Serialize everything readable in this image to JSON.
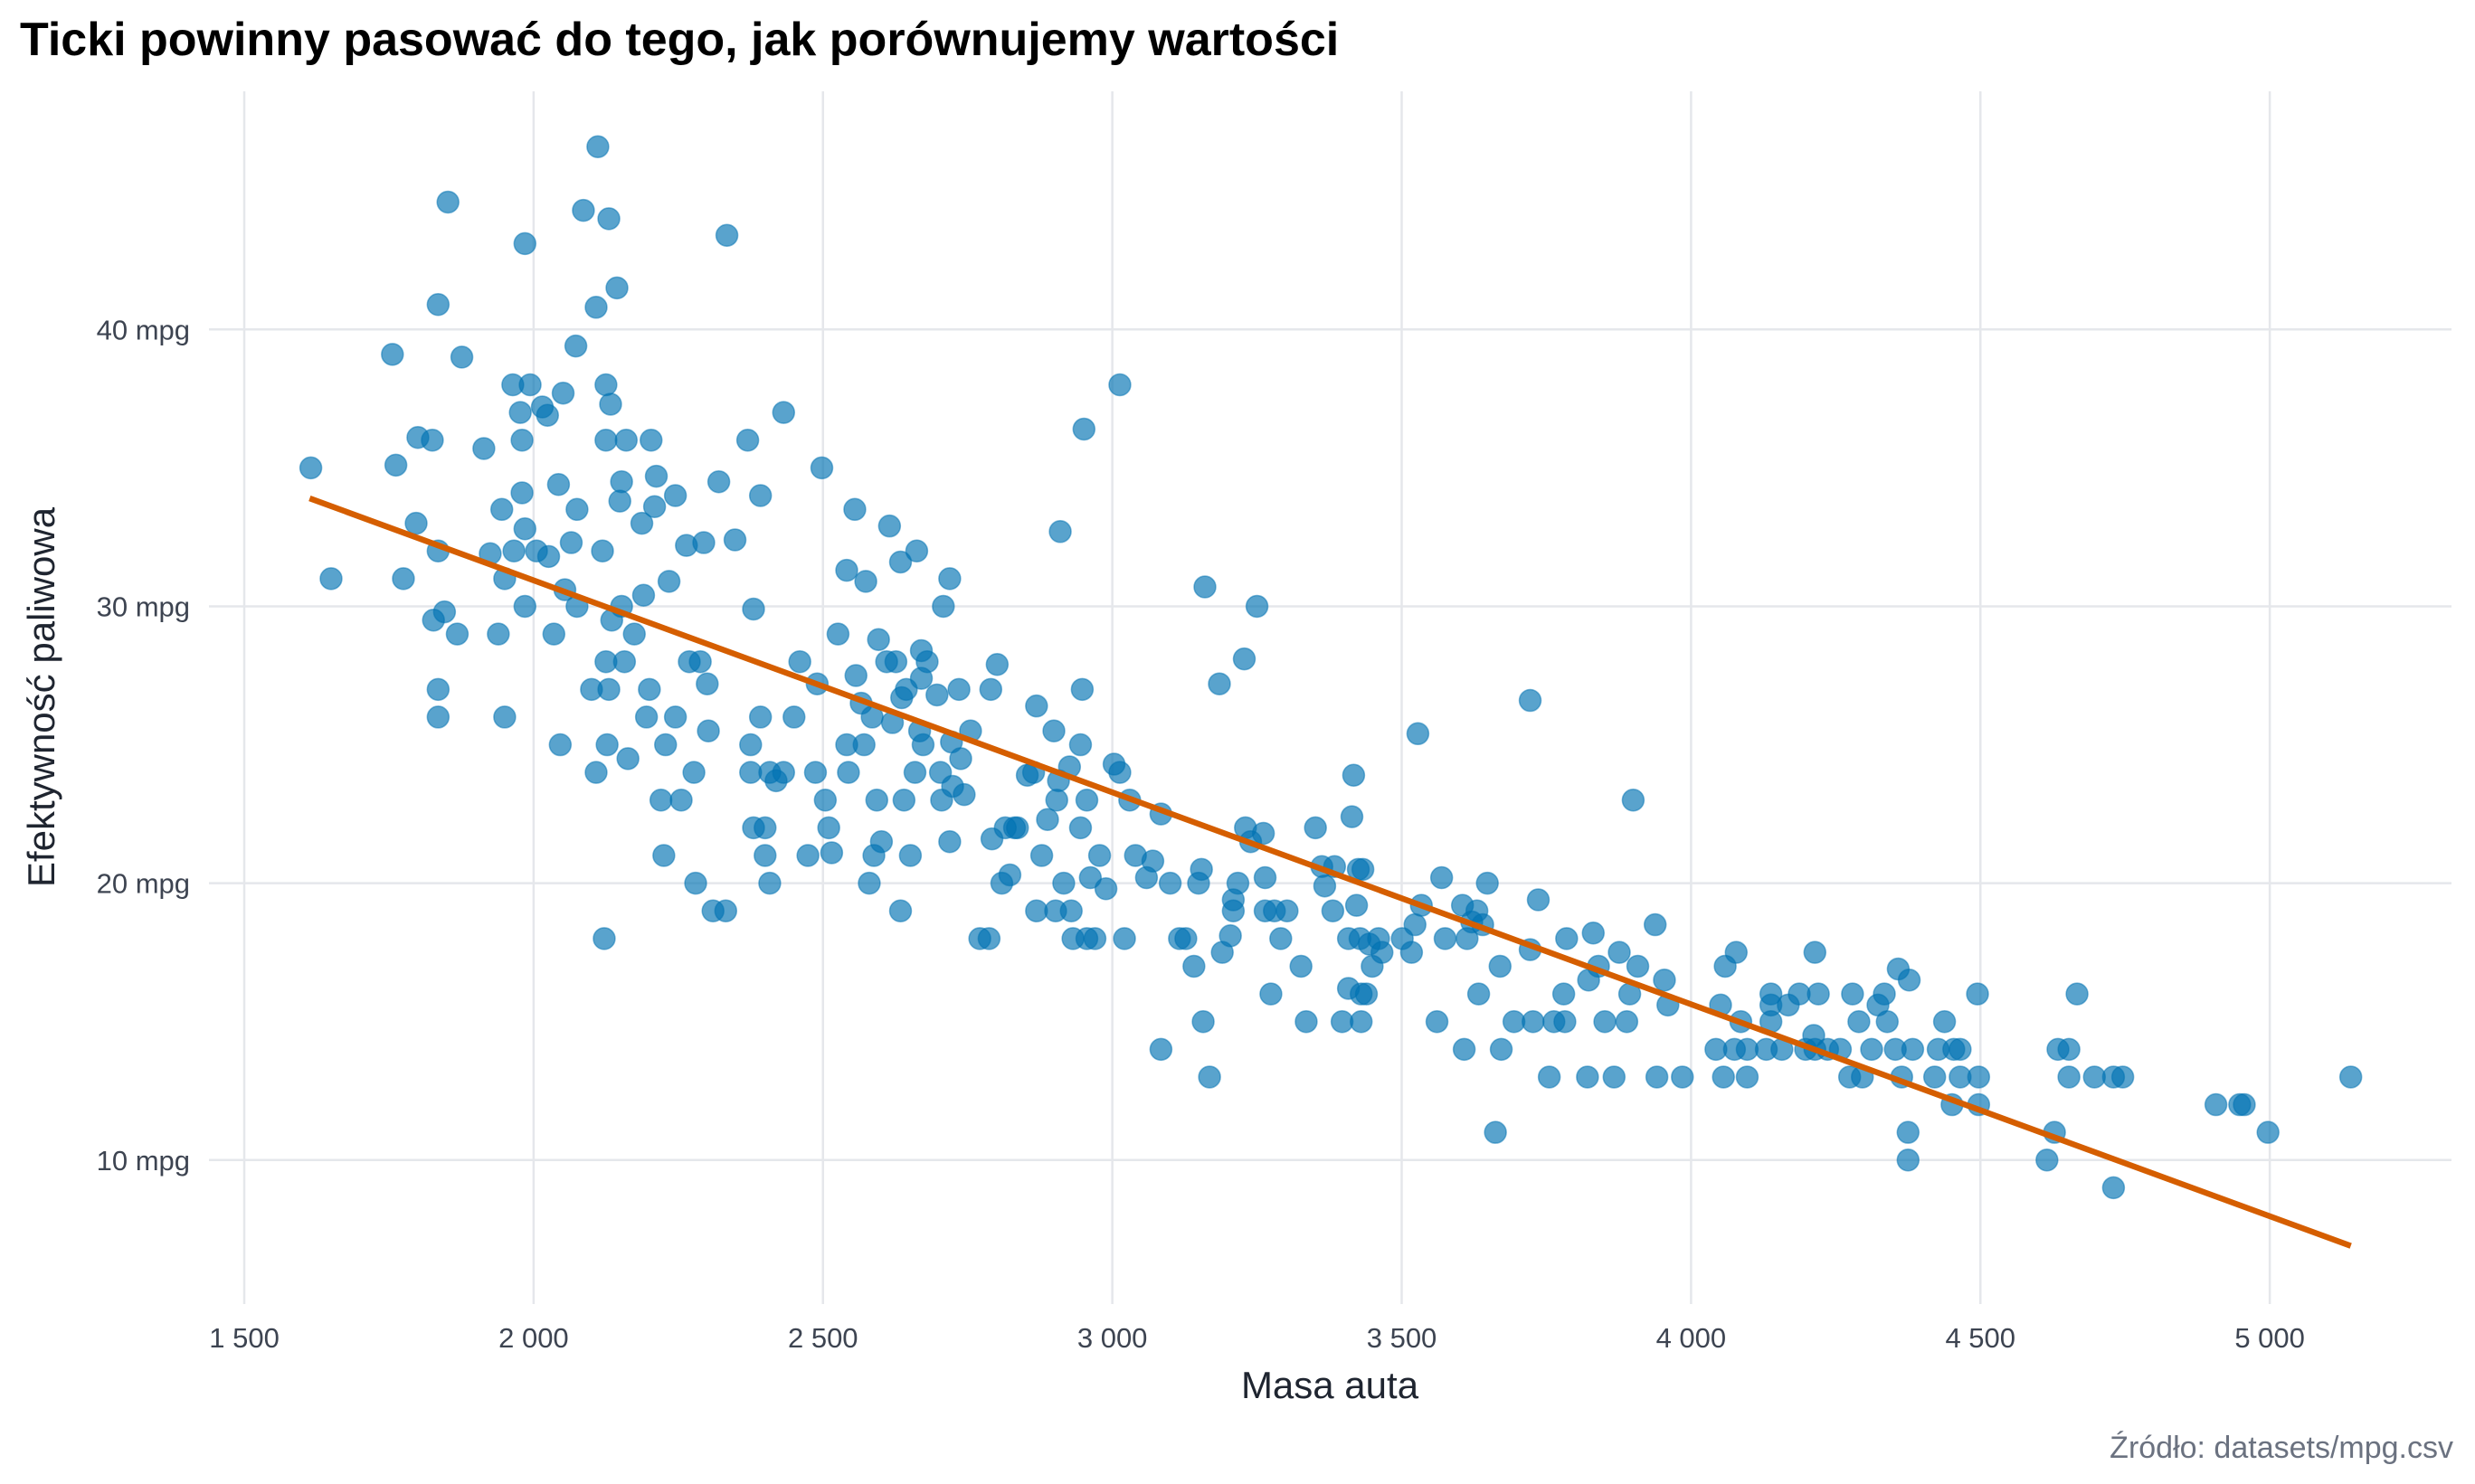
{
  "chart_data": {
    "type": "scatter",
    "title": "Ticki powinny pasować do tego, jak porównujemy wartości",
    "xlabel": "Masa auta",
    "ylabel": "Efektywność paliwowa",
    "caption": "Źródło: datasets/mpg.csv",
    "xlim": [
      1439,
      5314
    ],
    "ylim": [
      4.8,
      48.6
    ],
    "x_ticks": [
      1500,
      2000,
      2500,
      3000,
      3500,
      4000,
      4500,
      5000
    ],
    "x_tick_labels": [
      "1 500",
      "2 000",
      "2 500",
      "3 000",
      "3 500",
      "4 000",
      "4 500",
      "5 000"
    ],
    "y_ticks": [
      10,
      20,
      30,
      40
    ],
    "y_tick_labels": [
      "10 mpg",
      "20 mpg",
      "30 mpg",
      "40 mpg"
    ],
    "grid": true,
    "point_color": "#0072B2",
    "line_color": "#D55E00",
    "trend_line": [
      [
        1613,
        33.9
      ],
      [
        5140,
        6.9
      ]
    ],
    "points": [
      [
        1615,
        35
      ],
      [
        1650,
        31
      ],
      [
        1756,
        39.1
      ],
      [
        1762,
        35.1
      ],
      [
        1775,
        31
      ],
      [
        1800,
        36.1
      ],
      [
        1797,
        33
      ],
      [
        1825,
        36
      ],
      [
        1835,
        40.9
      ],
      [
        1835,
        32
      ],
      [
        1827,
        29.5
      ],
      [
        1846,
        29.8
      ],
      [
        1868,
        29
      ],
      [
        1852,
        44.6
      ],
      [
        1876,
        39
      ],
      [
        1835,
        27
      ],
      [
        1835,
        26
      ],
      [
        1914,
        35.7
      ],
      [
        1925,
        31.9
      ],
      [
        1939,
        29
      ],
      [
        1945,
        33.5
      ],
      [
        1950,
        31
      ],
      [
        1950,
        26
      ],
      [
        1964,
        38
      ],
      [
        1966,
        32
      ],
      [
        1977,
        37
      ],
      [
        1980,
        36
      ],
      [
        1980,
        34.1
      ],
      [
        1985,
        43.1
      ],
      [
        1985,
        32.8
      ],
      [
        1985,
        30
      ],
      [
        1994,
        38
      ],
      [
        2005,
        32
      ],
      [
        2015,
        37.2
      ],
      [
        2024,
        36.9
      ],
      [
        2026,
        31.8
      ],
      [
        2043,
        34.4
      ],
      [
        2035,
        29
      ],
      [
        2046,
        25
      ],
      [
        2051,
        37.7
      ],
      [
        2054,
        30.6
      ],
      [
        2065,
        32.3
      ],
      [
        2073,
        39.4
      ],
      [
        2075,
        33.5
      ],
      [
        2075,
        30
      ],
      [
        2086,
        44.3
      ],
      [
        2100,
        27
      ],
      [
        2108,
        24
      ],
      [
        2108,
        40.8
      ],
      [
        2111,
        46.6
      ],
      [
        2119,
        32
      ],
      [
        2122,
        18
      ],
      [
        2125,
        38
      ],
      [
        2125,
        36
      ],
      [
        2125,
        28
      ],
      [
        2127,
        25
      ],
      [
        2130,
        44
      ],
      [
        2130,
        27
      ],
      [
        2133,
        37.3
      ],
      [
        2135,
        29.5
      ],
      [
        2144,
        41.5
      ],
      [
        2149,
        33.8
      ],
      [
        2152,
        34.5
      ],
      [
        2152,
        30
      ],
      [
        2157,
        28
      ],
      [
        2160,
        36
      ],
      [
        2163,
        24.5
      ],
      [
        2174,
        29
      ],
      [
        2187,
        33
      ],
      [
        2190,
        30.4
      ],
      [
        2195,
        26
      ],
      [
        2200,
        27
      ],
      [
        2203,
        36
      ],
      [
        2209,
        33.6
      ],
      [
        2212,
        34.7
      ],
      [
        2220,
        23
      ],
      [
        2225,
        21
      ],
      [
        2228,
        25
      ],
      [
        2234,
        30.9
      ],
      [
        2245,
        26
      ],
      [
        2245,
        34
      ],
      [
        2255,
        23
      ],
      [
        2264,
        32.2
      ],
      [
        2269,
        28
      ],
      [
        2277,
        24
      ],
      [
        2280,
        20
      ],
      [
        2288,
        28
      ],
      [
        2294,
        32.3
      ],
      [
        2302,
        25.5
      ],
      [
        2300,
        27.2
      ],
      [
        2310,
        19
      ],
      [
        2320,
        34.5
      ],
      [
        2332,
        19
      ],
      [
        2334,
        43.4
      ],
      [
        2348,
        32.4
      ],
      [
        2370,
        36
      ],
      [
        2375,
        25
      ],
      [
        2375,
        24
      ],
      [
        2380,
        29.9
      ],
      [
        2380,
        22
      ],
      [
        2392,
        26
      ],
      [
        2392,
        34
      ],
      [
        2400,
        22
      ],
      [
        2400,
        21
      ],
      [
        2408,
        20
      ],
      [
        2408,
        24
      ],
      [
        2419,
        23.7
      ],
      [
        2432,
        24
      ],
      [
        2432,
        37
      ],
      [
        2450,
        26
      ],
      [
        2460,
        28
      ],
      [
        2474,
        21
      ],
      [
        2487,
        24
      ],
      [
        2490,
        27.2
      ],
      [
        2498,
        35
      ],
      [
        2504,
        23
      ],
      [
        2510,
        22
      ],
      [
        2515,
        21.1
      ],
      [
        2526,
        29
      ],
      [
        2541,
        31.3
      ],
      [
        2541,
        25
      ],
      [
        2544,
        24
      ],
      [
        2555,
        33.5
      ],
      [
        2557,
        27.5
      ],
      [
        2566,
        26.5
      ],
      [
        2571,
        25
      ],
      [
        2574,
        30.9
      ],
      [
        2580,
        20
      ],
      [
        2585,
        26
      ],
      [
        2588,
        21
      ],
      [
        2593,
        23
      ],
      [
        2596,
        28.8
      ],
      [
        2601,
        21.5
      ],
      [
        2610,
        28
      ],
      [
        2615,
        32.9
      ],
      [
        2620,
        25.8
      ],
      [
        2626,
        28
      ],
      [
        2634,
        31.6
      ],
      [
        2634,
        19
      ],
      [
        2636,
        26.7
      ],
      [
        2640,
        23
      ],
      [
        2644,
        27
      ],
      [
        2651,
        21
      ],
      [
        2659,
        24
      ],
      [
        2662,
        32
      ],
      [
        2667,
        25.5
      ],
      [
        2670,
        28.4
      ],
      [
        2670,
        27.4
      ],
      [
        2673,
        25
      ],
      [
        2680,
        28
      ],
      [
        2697,
        26.8
      ],
      [
        2703,
        24
      ],
      [
        2705,
        23
      ],
      [
        2708,
        30
      ],
      [
        2719,
        31
      ],
      [
        2719,
        21.5
      ],
      [
        2722,
        25.1
      ],
      [
        2724,
        23.5
      ],
      [
        2735,
        27
      ],
      [
        2738,
        24.5
      ],
      [
        2744,
        23.2
      ],
      [
        2755,
        25.5
      ],
      [
        2771,
        18
      ],
      [
        2787,
        18
      ],
      [
        2790,
        27
      ],
      [
        2792,
        21.6
      ],
      [
        2801,
        27.9
      ],
      [
        2809,
        20
      ],
      [
        2815,
        22
      ],
      [
        2823,
        20.3
      ],
      [
        2831,
        22
      ],
      [
        2836,
        22
      ],
      [
        2853,
        23.9
      ],
      [
        2864,
        24
      ],
      [
        2869,
        26.4
      ],
      [
        2869,
        19
      ],
      [
        2878,
        21
      ],
      [
        2888,
        22.3
      ],
      [
        2899,
        25.5
      ],
      [
        2902,
        19
      ],
      [
        2904,
        23
      ],
      [
        2907,
        23.7
      ],
      [
        2910,
        32.7
      ],
      [
        2916,
        20
      ],
      [
        2926,
        24.2
      ],
      [
        2929,
        19
      ],
      [
        2932,
        18
      ],
      [
        2945,
        22
      ],
      [
        2945,
        25
      ],
      [
        2948,
        27
      ],
      [
        2951,
        36.4
      ],
      [
        2956,
        18
      ],
      [
        2956,
        23
      ],
      [
        2962,
        20.2
      ],
      [
        2970,
        18
      ],
      [
        2978,
        21
      ],
      [
        2989,
        19.8
      ],
      [
        3003,
        24.3
      ],
      [
        3013,
        24
      ],
      [
        3013,
        38
      ],
      [
        3021,
        18
      ],
      [
        3030,
        23
      ],
      [
        3040,
        21
      ],
      [
        3059,
        20.2
      ],
      [
        3070,
        20.8
      ],
      [
        3084,
        22.5
      ],
      [
        3084,
        14
      ],
      [
        3100,
        20
      ],
      [
        3116,
        18
      ],
      [
        3127,
        18
      ],
      [
        3141,
        17
      ],
      [
        3149,
        20
      ],
      [
        3154,
        20.5
      ],
      [
        3157,
        15
      ],
      [
        3160,
        30.7
      ],
      [
        3168,
        13
      ],
      [
        3185,
        27.2
      ],
      [
        3190,
        17.5
      ],
      [
        3204,
        18.1
      ],
      [
        3209,
        19.4
      ],
      [
        3209,
        19
      ],
      [
        3217,
        20
      ],
      [
        3228,
        28.1
      ],
      [
        3230,
        22
      ],
      [
        3239,
        21.5
      ],
      [
        3250,
        30
      ],
      [
        3261,
        21.8
      ],
      [
        3264,
        20.2
      ],
      [
        3264,
        19
      ],
      [
        3274,
        16
      ],
      [
        3280,
        19
      ],
      [
        3291,
        18
      ],
      [
        3302,
        19
      ],
      [
        3326,
        17
      ],
      [
        3335,
        15
      ],
      [
        3351,
        22
      ],
      [
        3362,
        20.6
      ],
      [
        3367,
        19.9
      ],
      [
        3381,
        19
      ],
      [
        3384,
        20.6
      ],
      [
        3397,
        15
      ],
      [
        3408,
        18
      ],
      [
        3408,
        16.2
      ],
      [
        3414,
        22.4
      ],
      [
        3417,
        23.9
      ],
      [
        3422,
        19.2
      ],
      [
        3425,
        20.5
      ],
      [
        3428,
        18
      ],
      [
        3430,
        15
      ],
      [
        3430,
        16
      ],
      [
        3433,
        20.5
      ],
      [
        3439,
        16
      ],
      [
        3444,
        17.8
      ],
      [
        3449,
        17
      ],
      [
        3460,
        18
      ],
      [
        3466,
        17.5
      ],
      [
        3501,
        18
      ],
      [
        3517,
        17.5
      ],
      [
        3523,
        18.5
      ],
      [
        3528,
        25.4
      ],
      [
        3534,
        19.2
      ],
      [
        3561,
        15
      ],
      [
        3569,
        20.2
      ],
      [
        3575,
        18
      ],
      [
        3605,
        19.2
      ],
      [
        3608,
        14
      ],
      [
        3613,
        18
      ],
      [
        3621,
        18.6
      ],
      [
        3630,
        19
      ],
      [
        3633,
        16
      ],
      [
        3640,
        18.5
      ],
      [
        3648,
        20
      ],
      [
        3662,
        11
      ],
      [
        3670,
        17
      ],
      [
        3672,
        14
      ],
      [
        3694,
        15
      ],
      [
        3722,
        26.6
      ],
      [
        3722,
        17.6
      ],
      [
        3727,
        15
      ],
      [
        3736,
        19.4
      ],
      [
        3755,
        13
      ],
      [
        3763,
        15
      ],
      [
        3780,
        16
      ],
      [
        3782,
        15
      ],
      [
        3785,
        18
      ],
      [
        3821,
        13
      ],
      [
        3823,
        16.5
      ],
      [
        3831,
        18.2
      ],
      [
        3840,
        17
      ],
      [
        3851,
        15
      ],
      [
        3867,
        13
      ],
      [
        3876,
        17.5
      ],
      [
        3889,
        15
      ],
      [
        3894,
        16
      ],
      [
        3900,
        23
      ],
      [
        3908,
        17
      ],
      [
        3938,
        18.5
      ],
      [
        3941,
        13
      ],
      [
        3954,
        16.5
      ],
      [
        3960,
        15.6
      ],
      [
        3985,
        13
      ],
      [
        4043,
        14
      ],
      [
        4051,
        15.6
      ],
      [
        4056,
        13
      ],
      [
        4059,
        17
      ],
      [
        4075,
        14
      ],
      [
        4078,
        17.5
      ],
      [
        4086,
        15
      ],
      [
        4097,
        14
      ],
      [
        4097,
        13
      ],
      [
        4130,
        14
      ],
      [
        4138,
        16
      ],
      [
        4138,
        15.6
      ],
      [
        4138,
        15
      ],
      [
        4157,
        14
      ],
      [
        4168,
        15.6
      ],
      [
        4187,
        16
      ],
      [
        4198,
        14
      ],
      [
        4212,
        14.5
      ],
      [
        4214,
        17.5
      ],
      [
        4214,
        14
      ],
      [
        4220,
        16
      ],
      [
        4236,
        14
      ],
      [
        4258,
        14
      ],
      [
        4274,
        13
      ],
      [
        4279,
        16
      ],
      [
        4290,
        15
      ],
      [
        4296,
        13
      ],
      [
        4312,
        14
      ],
      [
        4323,
        15.6
      ],
      [
        4334,
        16
      ],
      [
        4339,
        15
      ],
      [
        4353,
        14
      ],
      [
        4358,
        16.9
      ],
      [
        4364,
        13
      ],
      [
        4375,
        11
      ],
      [
        4377,
        16.5
      ],
      [
        4375,
        10
      ],
      [
        4383,
        14
      ],
      [
        4421,
        13
      ],
      [
        4427,
        14
      ],
      [
        4438,
        15
      ],
      [
        4451,
        12
      ],
      [
        4454,
        14
      ],
      [
        4465,
        14
      ],
      [
        4465,
        13
      ],
      [
        4495,
        16
      ],
      [
        4497,
        12
      ],
      [
        4497,
        13
      ],
      [
        4615,
        10
      ],
      [
        4628,
        11
      ],
      [
        4634,
        14
      ],
      [
        4653,
        14
      ],
      [
        4653,
        13
      ],
      [
        4667,
        16
      ],
      [
        4697,
        13
      ],
      [
        4730,
        9
      ],
      [
        4730,
        13
      ],
      [
        4746,
        13
      ],
      [
        4907,
        12
      ],
      [
        4948,
        12
      ],
      [
        4956,
        12
      ],
      [
        4997,
        11
      ],
      [
        5140,
        13
      ]
    ]
  }
}
